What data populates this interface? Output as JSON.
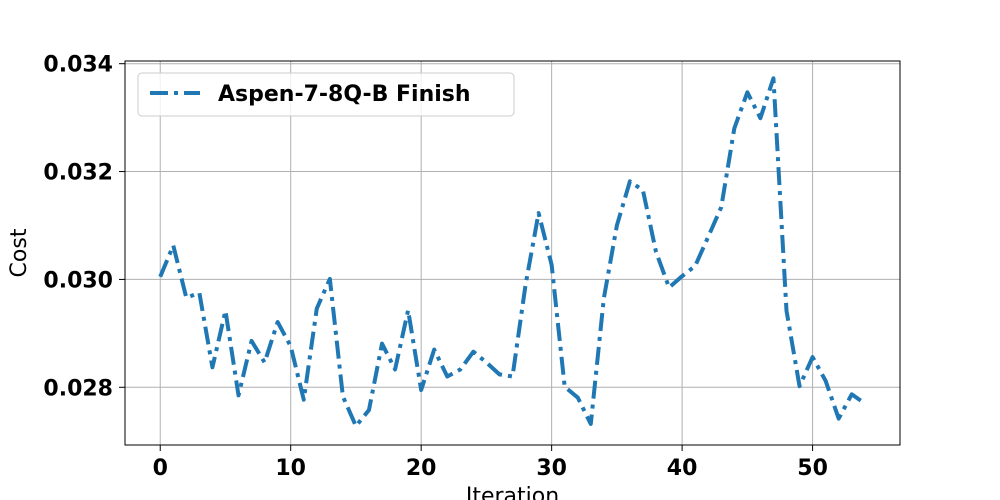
{
  "chart_data": {
    "type": "line",
    "xlabel": "Iteration",
    "ylabel": "Cost",
    "xlim": [
      -2.7,
      56.7
    ],
    "ylim": [
      0.02693,
      0.03405
    ],
    "xticks": [
      0,
      10,
      20,
      30,
      40,
      50
    ],
    "yticks": [
      0.028,
      0.03,
      0.032,
      0.034
    ],
    "xtick_labels": [
      "0",
      "10",
      "20",
      "30",
      "40",
      "50"
    ],
    "ytick_labels": [
      "0.028",
      "0.030",
      "0.032",
      "0.034"
    ],
    "grid": true,
    "legend_position": "upper-left",
    "series": [
      {
        "name": "Aspen-7-8Q-B Finish",
        "color": "#1f77b4",
        "line_style": "dash-dot",
        "x": [
          0,
          1,
          2,
          3,
          4,
          5,
          6,
          7,
          8,
          9,
          10,
          11,
          12,
          13,
          14,
          15,
          16,
          17,
          18,
          19,
          20,
          21,
          22,
          23,
          24,
          25,
          26,
          27,
          28,
          29,
          30,
          31,
          32,
          33,
          34,
          35,
          36,
          37,
          38,
          39,
          40,
          41,
          42,
          43,
          44,
          45,
          46,
          47,
          48,
          49,
          50,
          51,
          52,
          53,
          54
        ],
        "y": [
          0.03005,
          0.03063,
          0.02966,
          0.02975,
          0.02837,
          0.02942,
          0.02785,
          0.02886,
          0.02846,
          0.02921,
          0.02876,
          0.02777,
          0.02946,
          0.03001,
          0.02783,
          0.02728,
          0.02758,
          0.02881,
          0.02833,
          0.02943,
          0.02795,
          0.0287,
          0.0282,
          0.02833,
          0.02866,
          0.02846,
          0.02824,
          0.0282,
          0.0299,
          0.03123,
          0.03027,
          0.02801,
          0.02781,
          0.02732,
          0.02965,
          0.031,
          0.03182,
          0.03165,
          0.03051,
          0.02985,
          0.03006,
          0.03025,
          0.03079,
          0.03134,
          0.0328,
          0.03347,
          0.03299,
          0.03373,
          0.02942,
          0.02802,
          0.02856,
          0.02812,
          0.02742,
          0.02787,
          0.0277
        ]
      }
    ]
  }
}
